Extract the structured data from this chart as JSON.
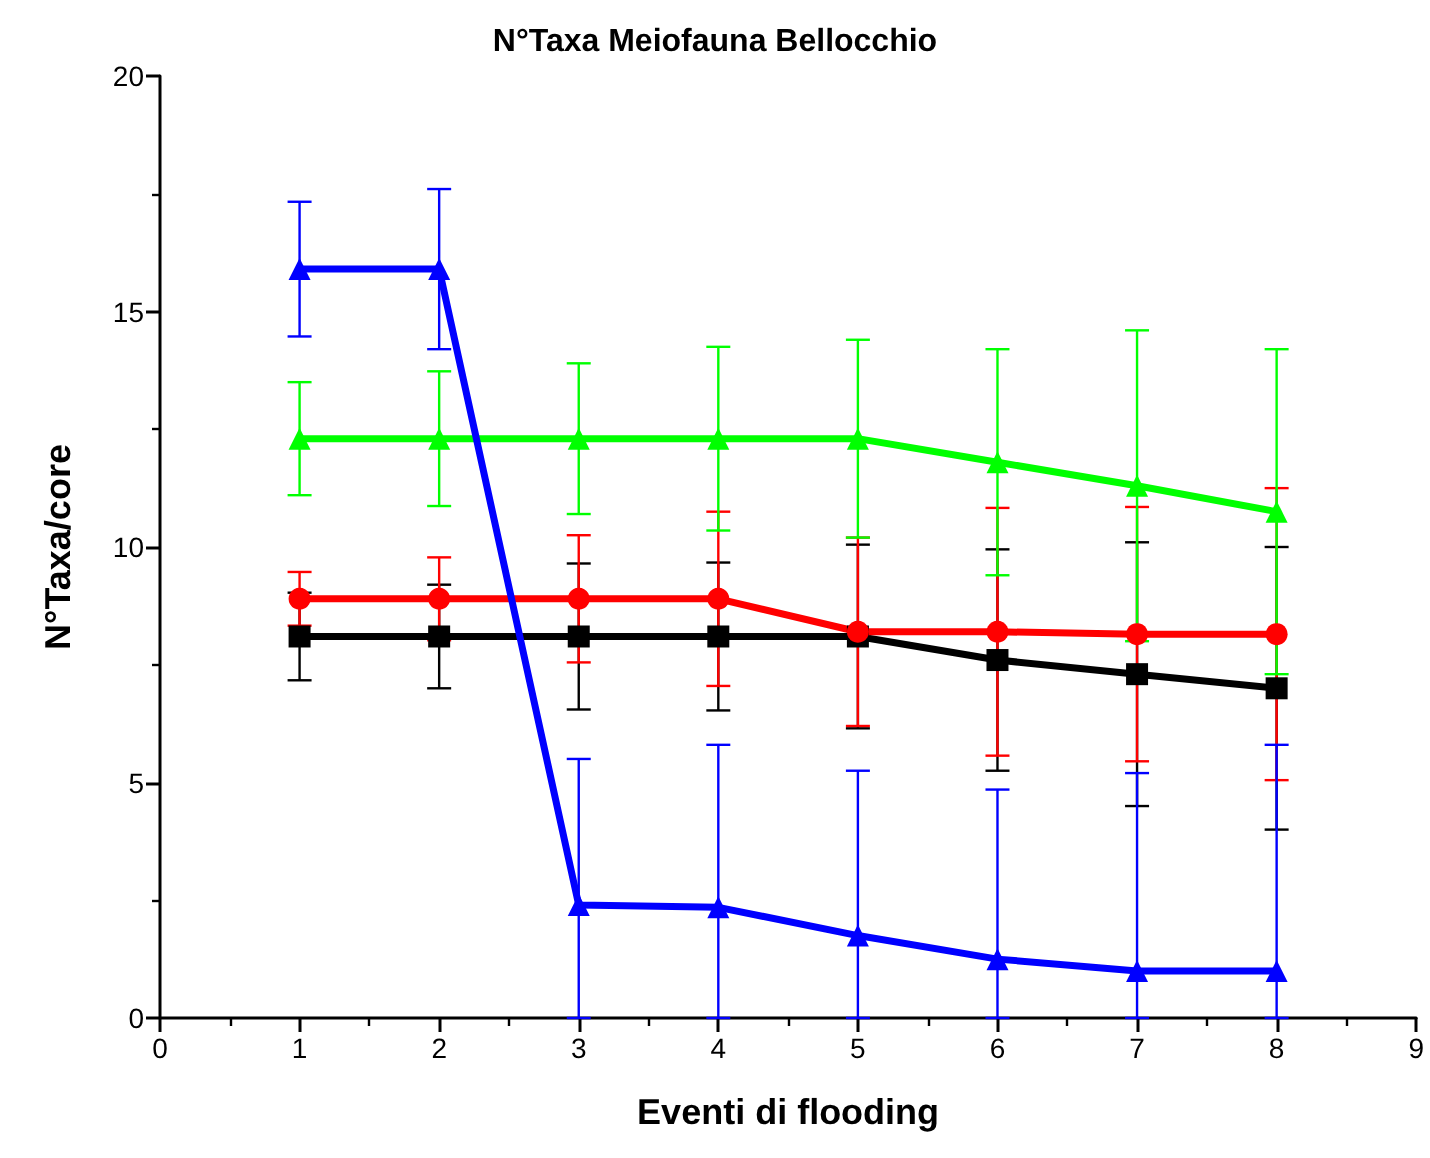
{
  "chart_data": {
    "type": "line",
    "title": "N°Taxa Meiofauna Bellocchio",
    "xlabel": "Eventi di flooding",
    "ylabel": "N°Taxa/core",
    "x": [
      1,
      2,
      3,
      4,
      5,
      6,
      7,
      8
    ],
    "xlim": [
      0,
      9
    ],
    "xticks": [
      0,
      1,
      2,
      3,
      4,
      5,
      6,
      7,
      8,
      9
    ],
    "ylim": [
      0,
      20
    ],
    "yticks": [
      0,
      5,
      10,
      15,
      20
    ],
    "grid": false,
    "line_style": "solid",
    "series": [
      {
        "color": "#000000",
        "marker": "square",
        "values": [
          8.1,
          8.1,
          8.1,
          8.1,
          8.1,
          7.6,
          7.3,
          7.0
        ],
        "errors": [
          0.93,
          1.1,
          1.55,
          1.57,
          1.95,
          2.35,
          2.8,
          3.0
        ]
      },
      {
        "color": "#ff0000",
        "marker": "circle",
        "values": [
          8.9,
          8.9,
          8.9,
          8.9,
          8.2,
          8.2,
          8.15,
          8.15
        ],
        "errors": [
          0.57,
          0.88,
          1.35,
          1.85,
          2.0,
          2.63,
          2.7,
          3.1
        ]
      },
      {
        "color": "#00ff00",
        "marker": "triangle",
        "values": [
          12.3,
          12.3,
          12.3,
          12.3,
          12.3,
          11.8,
          11.3,
          10.75
        ],
        "errors": [
          1.2,
          1.43,
          1.6,
          1.95,
          2.1,
          2.4,
          3.3,
          3.45
        ]
      },
      {
        "color": "#0000ff",
        "marker": "triangle",
        "values": [
          15.9,
          15.9,
          2.4,
          2.35,
          1.75,
          1.25,
          1.0,
          1.0
        ],
        "errors": [
          1.43,
          1.7,
          [
            0,
            5.5
          ],
          [
            0,
            5.8
          ],
          [
            0,
            5.25
          ],
          [
            0,
            4.85
          ],
          [
            0,
            5.2
          ],
          [
            0,
            5.8
          ]
        ]
      }
    ]
  }
}
